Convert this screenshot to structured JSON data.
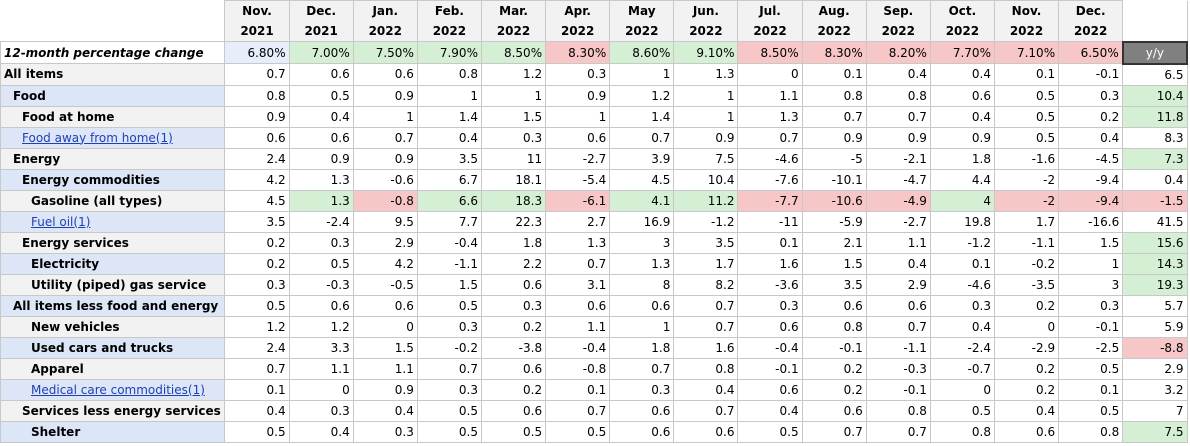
{
  "columns": [
    {
      "month": "Nov.",
      "year": "2021"
    },
    {
      "month": "Dec.",
      "year": "2021"
    },
    {
      "month": "Jan.",
      "year": "2022"
    },
    {
      "month": "Feb.",
      "year": "2022"
    },
    {
      "month": "Mar.",
      "year": "2022"
    },
    {
      "month": "Apr.",
      "year": "2022"
    },
    {
      "month": "May",
      "year": "2022"
    },
    {
      "month": "Jun.",
      "year": "2022"
    },
    {
      "month": "Jul.",
      "year": "2022"
    },
    {
      "month": "Aug.",
      "year": "2022"
    },
    {
      "month": "Sep.",
      "year": "2022"
    },
    {
      "month": "Oct.",
      "year": "2022"
    },
    {
      "month": "Nov.",
      "year": "2022"
    },
    {
      "month": "Dec.",
      "year": "2022"
    }
  ],
  "rate_row": {
    "label": "12-month percentage change",
    "values": [
      "6.80%",
      "7.00%",
      "7.50%",
      "7.90%",
      "8.50%",
      "8.30%",
      "8.60%",
      "9.10%",
      "8.50%",
      "8.30%",
      "8.20%",
      "7.70%",
      "7.10%",
      "6.50%"
    ],
    "shades": [
      "b",
      "g",
      "g",
      "g",
      "g",
      "r",
      "g",
      "g",
      "r",
      "r",
      "r",
      "r",
      "r",
      "r"
    ],
    "yy_label": "y/y"
  },
  "rows": [
    {
      "label": "All items",
      "indent": 0,
      "style": "gray",
      "link": false,
      "values": [
        "0.7",
        "0.6",
        "0.6",
        "0.8",
        "1.2",
        "0.3",
        "1",
        "1.3",
        "0",
        "0.1",
        "0.4",
        "0.4",
        "0.1",
        "-0.1"
      ],
      "yy": "6.5",
      "yy_shade": ""
    },
    {
      "label": "Food",
      "indent": 1,
      "style": "blue",
      "link": false,
      "values": [
        "0.8",
        "0.5",
        "0.9",
        "1",
        "1",
        "0.9",
        "1.2",
        "1",
        "1.1",
        "0.8",
        "0.8",
        "0.6",
        "0.5",
        "0.3"
      ],
      "yy": "10.4",
      "yy_shade": "g"
    },
    {
      "label": "Food at home",
      "indent": 2,
      "style": "gray",
      "link": false,
      "values": [
        "0.9",
        "0.4",
        "1",
        "1.4",
        "1.5",
        "1",
        "1.4",
        "1",
        "1.3",
        "0.7",
        "0.7",
        "0.4",
        "0.5",
        "0.2"
      ],
      "yy": "11.8",
      "yy_shade": "g"
    },
    {
      "label": "Food away from home(1)",
      "indent": 2,
      "style": "blue",
      "link": true,
      "values": [
        "0.6",
        "0.6",
        "0.7",
        "0.4",
        "0.3",
        "0.6",
        "0.7",
        "0.9",
        "0.7",
        "0.9",
        "0.9",
        "0.9",
        "0.5",
        "0.4"
      ],
      "yy": "8.3",
      "yy_shade": ""
    },
    {
      "label": "Energy",
      "indent": 1,
      "style": "gray",
      "link": false,
      "values": [
        "2.4",
        "0.9",
        "0.9",
        "3.5",
        "11",
        "-2.7",
        "3.9",
        "7.5",
        "-4.6",
        "-5",
        "-2.1",
        "1.8",
        "-1.6",
        "-4.5"
      ],
      "yy": "7.3",
      "yy_shade": "g"
    },
    {
      "label": "Energy commodities",
      "indent": 2,
      "style": "blue",
      "link": false,
      "values": [
        "4.2",
        "1.3",
        "-0.6",
        "6.7",
        "18.1",
        "-5.4",
        "4.5",
        "10.4",
        "-7.6",
        "-10.1",
        "-4.7",
        "4.4",
        "-2",
        "-9.4"
      ],
      "yy": "0.4",
      "yy_shade": ""
    },
    {
      "label": "Gasoline (all types)",
      "indent": 3,
      "style": "gray",
      "link": false,
      "values": [
        "4.5",
        "1.3",
        "-0.8",
        "6.6",
        "18.3",
        "-6.1",
        "4.1",
        "11.2",
        "-7.7",
        "-10.6",
        "-4.9",
        "4",
        "-2",
        "-9.4"
      ],
      "shades": [
        "",
        "g",
        "r",
        "g",
        "g",
        "r",
        "g",
        "g",
        "r",
        "r",
        "r",
        "g",
        "r",
        "r"
      ],
      "yy": "-1.5",
      "yy_shade": "r"
    },
    {
      "label": "Fuel oil(1)",
      "indent": 3,
      "style": "blue",
      "link": true,
      "values": [
        "3.5",
        "-2.4",
        "9.5",
        "7.7",
        "22.3",
        "2.7",
        "16.9",
        "-1.2",
        "-11",
        "-5.9",
        "-2.7",
        "19.8",
        "1.7",
        "-16.6"
      ],
      "yy": "41.5",
      "yy_shade": ""
    },
    {
      "label": "Energy services",
      "indent": 2,
      "style": "gray",
      "link": false,
      "values": [
        "0.2",
        "0.3",
        "2.9",
        "-0.4",
        "1.8",
        "1.3",
        "3",
        "3.5",
        "0.1",
        "2.1",
        "1.1",
        "-1.2",
        "-1.1",
        "1.5"
      ],
      "yy": "15.6",
      "yy_shade": "g"
    },
    {
      "label": "Electricity",
      "indent": 3,
      "style": "blue",
      "link": false,
      "values": [
        "0.2",
        "0.5",
        "4.2",
        "-1.1",
        "2.2",
        "0.7",
        "1.3",
        "1.7",
        "1.6",
        "1.5",
        "0.4",
        "0.1",
        "-0.2",
        "1"
      ],
      "yy": "14.3",
      "yy_shade": "g"
    },
    {
      "label": "Utility (piped) gas service",
      "indent": 3,
      "style": "gray",
      "link": false,
      "values": [
        "0.3",
        "-0.3",
        "-0.5",
        "1.5",
        "0.6",
        "3.1",
        "8",
        "8.2",
        "-3.6",
        "3.5",
        "2.9",
        "-4.6",
        "-3.5",
        "3"
      ],
      "yy": "19.3",
      "yy_shade": "g"
    },
    {
      "label": "All items less food and energy",
      "indent": 1,
      "style": "blue",
      "link": false,
      "values": [
        "0.5",
        "0.6",
        "0.6",
        "0.5",
        "0.3",
        "0.6",
        "0.6",
        "0.7",
        "0.3",
        "0.6",
        "0.6",
        "0.3",
        "0.2",
        "0.3"
      ],
      "yy": "5.7",
      "yy_shade": ""
    },
    {
      "label": "New vehicles",
      "indent": 3,
      "style": "gray",
      "link": false,
      "values": [
        "1.2",
        "1.2",
        "0",
        "0.3",
        "0.2",
        "1.1",
        "1",
        "0.7",
        "0.6",
        "0.8",
        "0.7",
        "0.4",
        "0",
        "-0.1"
      ],
      "yy": "5.9",
      "yy_shade": ""
    },
    {
      "label": "Used cars and trucks",
      "indent": 3,
      "style": "blue",
      "link": false,
      "values": [
        "2.4",
        "3.3",
        "1.5",
        "-0.2",
        "-3.8",
        "-0.4",
        "1.8",
        "1.6",
        "-0.4",
        "-0.1",
        "-1.1",
        "-2.4",
        "-2.9",
        "-2.5"
      ],
      "yy": "-8.8",
      "yy_shade": "r"
    },
    {
      "label": "Apparel",
      "indent": 3,
      "style": "gray",
      "link": false,
      "values": [
        "0.7",
        "1.1",
        "1.1",
        "0.7",
        "0.6",
        "-0.8",
        "0.7",
        "0.8",
        "-0.1",
        "0.2",
        "-0.3",
        "-0.7",
        "0.2",
        "0.5"
      ],
      "yy": "2.9",
      "yy_shade": ""
    },
    {
      "label": "Medical care commodities(1)",
      "indent": 3,
      "style": "blue",
      "link": true,
      "values": [
        "0.1",
        "0",
        "0.9",
        "0.3",
        "0.2",
        "0.1",
        "0.3",
        "0.4",
        "0.6",
        "0.2",
        "-0.1",
        "0",
        "0.2",
        "0.1"
      ],
      "yy": "3.2",
      "yy_shade": ""
    },
    {
      "label": "Services less energy services",
      "indent": 2,
      "style": "gray",
      "link": false,
      "values": [
        "0.4",
        "0.3",
        "0.4",
        "0.5",
        "0.6",
        "0.7",
        "0.6",
        "0.7",
        "0.4",
        "0.6",
        "0.8",
        "0.5",
        "0.4",
        "0.5"
      ],
      "yy": "7",
      "yy_shade": ""
    },
    {
      "label": "Shelter",
      "indent": 3,
      "style": "blue",
      "link": false,
      "values": [
        "0.5",
        "0.4",
        "0.3",
        "0.5",
        "0.5",
        "0.5",
        "0.6",
        "0.6",
        "0.5",
        "0.7",
        "0.7",
        "0.8",
        "0.6",
        "0.8"
      ],
      "yy": "7.5",
      "yy_shade": "g"
    }
  ]
}
